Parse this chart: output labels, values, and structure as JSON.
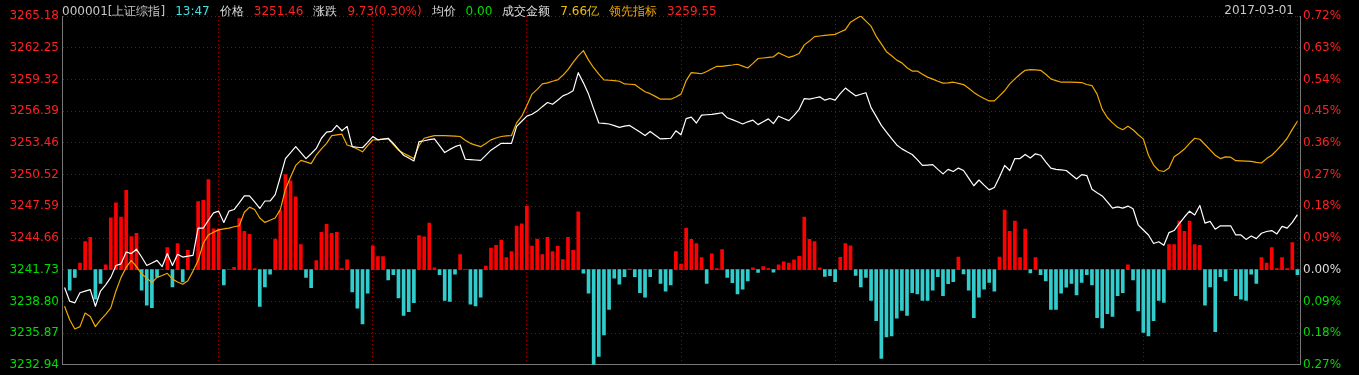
{
  "chart_data": {
    "type": "line",
    "title": "000001[上证综指]",
    "annotations": [
      "13:47",
      "3251.46",
      "涨跌",
      "9.73(0.30%)",
      "均价",
      "0.00",
      "成交金额",
      "7.66亿",
      "3259.55",
      "2017-03-01"
    ],
    "categories": [
      null,
      null,
      null,
      null,
      null,
      null,
      null,
      null,
      null,
      null,
      null,
      null,
      null,
      null,
      null,
      null,
      null,
      null,
      null,
      null,
      null,
      null,
      null,
      null,
      null,
      null,
      null,
      null,
      null,
      null,
      null,
      null,
      null,
      null,
      null,
      null,
      null,
      null,
      null,
      null,
      null,
      null,
      null,
      null,
      null,
      null,
      null,
      null,
      null,
      null,
      null,
      null,
      null,
      null,
      null,
      null,
      null,
      null,
      null,
      null,
      null,
      null,
      null,
      null,
      null,
      null,
      null,
      null,
      null,
      null,
      null,
      null,
      null,
      null,
      null,
      null,
      null,
      null,
      null,
      null,
      null,
      null,
      null,
      null,
      null,
      null,
      null,
      null,
      null,
      null,
      null,
      null,
      null,
      null,
      null,
      null,
      null,
      null,
      null,
      null,
      null,
      null,
      null,
      null,
      null,
      null,
      null,
      null,
      null,
      null,
      null,
      null,
      null,
      null,
      null,
      null,
      null,
      null,
      null,
      null,
      null,
      null,
      null,
      null,
      null,
      null,
      null,
      null,
      null,
      null,
      null,
      null,
      null,
      null,
      null,
      null,
      null,
      null,
      null,
      null,
      null,
      null,
      null,
      null,
      null,
      null,
      null,
      null,
      null,
      null,
      null,
      null,
      null,
      null,
      null,
      null,
      null,
      null,
      null,
      null,
      null,
      null,
      null,
      null,
      null,
      null,
      null,
      null,
      null,
      null,
      null,
      null,
      null,
      null,
      null,
      null,
      null,
      null,
      null,
      null,
      null,
      null,
      null,
      null,
      null,
      null,
      null,
      null,
      null,
      null,
      null,
      null,
      null,
      null,
      null,
      null,
      null,
      null,
      null,
      null,
      null,
      null,
      null,
      null,
      null,
      null,
      null,
      null,
      null,
      null,
      null,
      null,
      null,
      null,
      null,
      null,
      null,
      null,
      null,
      null,
      null,
      null,
      null,
      null,
      null,
      null,
      null,
      null,
      null,
      null,
      null,
      null,
      null,
      null,
      null,
      null,
      null,
      null,
      null,
      null,
      null
    ],
    "ylim": [
      3232.94,
      3265.18
    ],
    "yticks": [
      {
        "value": 3232.94,
        "label": "3232.94"
      },
      {
        "value": 3235.87,
        "label": "3235.87"
      },
      {
        "value": 3238.8,
        "label": "3238.80"
      },
      {
        "value": 3241.73,
        "label": "3241.73"
      },
      {
        "value": 3244.66,
        "label": "3244.66"
      },
      {
        "value": 3247.59,
        "label": "3247.59"
      },
      {
        "value": 3250.52,
        "label": "3250.52"
      },
      {
        "value": 3253.46,
        "label": "3253.46"
      },
      {
        "value": 3256.39,
        "label": "3256.39"
      },
      {
        "value": 3259.32,
        "label": "3259.32"
      },
      {
        "value": 3262.25,
        "label": "3262.25"
      },
      {
        "value": 3265.18,
        "label": "3265.18"
      }
    ],
    "y2lim": [
      -0.27,
      0.72
    ],
    "y2ticks": [
      {
        "value": -0.27,
        "label": "0.27%"
      },
      {
        "value": -0.18,
        "label": "0.18%"
      },
      {
        "value": -0.09,
        "label": "0.09%"
      },
      {
        "value": 0,
        "label": "0.00%"
      },
      {
        "value": 0.09,
        "label": "0.09%"
      },
      {
        "value": 0.18,
        "label": "0.18%"
      },
      {
        "value": 0.27,
        "label": "0.27%"
      },
      {
        "value": 0.36,
        "label": "0.36%"
      },
      {
        "value": 0.45,
        "label": "0.45%"
      },
      {
        "value": 0.54,
        "label": "0.54%"
      },
      {
        "value": 0.63,
        "label": "0.63%"
      },
      {
        "value": 0.72,
        "label": "0.72%"
      }
    ],
    "grid": true,
    "tick_labels": "y",
    "series": [
      {
        "type": "bar",
        "axis": "y2",
        "values": [
          null,
          -0.058,
          -0.022,
          0.019,
          0.08,
          0.092,
          -0.084,
          -0.039,
          0.014,
          0.147,
          0.19,
          0.149,
          0.225,
          0.094,
          0.103,
          -0.058,
          -0.101,
          -0.108,
          -0.021,
          0,
          0.063,
          -0.049,
          0.074,
          -0.035,
          0.055,
          0,
          0.193,
          0.197,
          0.256,
          0.116,
          0.116,
          -0.043,
          0,
          0.007,
          0.145,
          0.109,
          0.1,
          0.003,
          -0.104,
          -0.049,
          -0.013,
          0.087,
          0.168,
          0.27,
          0.252,
          0.207,
          0.071,
          -0.022,
          -0.051,
          0.026,
          0.106,
          0.129,
          0.103,
          0.106,
          0.003,
          0.028,
          -0.063,
          -0.109,
          -0.154,
          -0.067,
          0.068,
          0.037,
          0.037,
          -0.029,
          -0.014,
          -0.08,
          -0.13,
          -0.119,
          -0.094,
          0.097,
          0.093,
          0.132,
          0.005,
          -0.014,
          -0.087,
          -0.09,
          -0.013,
          0.043,
          0,
          -0.098,
          -0.103,
          -0.078,
          0.01,
          0.061,
          0.069,
          0.084,
          0.034,
          0.051,
          0.124,
          0.13,
          0.18,
          0.067,
          0.087,
          0.043,
          0.092,
          0.051,
          0.067,
          0.029,
          0.092,
          0.055,
          0.164,
          -0.01,
          -0.067,
          -0.27,
          -0.246,
          -0.185,
          -0.113,
          -0.024,
          -0.041,
          -0.02,
          0.002,
          -0.02,
          -0.065,
          -0.078,
          -0.02,
          0,
          -0.039,
          -0.061,
          -0.043,
          0.051,
          0.016,
          0.118,
          0.086,
          0.074,
          0.034,
          -0.039,
          0.045,
          0.003,
          0.057,
          -0.022,
          -0.037,
          -0.069,
          -0.055,
          -0.032,
          0.005,
          -0.008,
          0.009,
          0.003,
          -0.007,
          0.014,
          0.022,
          0.019,
          0.028,
          0.038,
          0.149,
          0.086,
          0.08,
          0.005,
          -0.019,
          -0.017,
          -0.034,
          0.035,
          0.074,
          0.068,
          -0.016,
          -0.049,
          -0.022,
          -0.087,
          -0.145,
          -0.252,
          -0.191,
          -0.188,
          -0.138,
          -0.116,
          -0.13,
          -0.065,
          -0.069,
          -0.087,
          -0.087,
          -0.058,
          -0.02,
          -0.074,
          -0.04,
          -0.034,
          0.036,
          -0.012,
          -0.058,
          -0.136,
          -0.078,
          -0.055,
          -0.036,
          -0.061,
          0.036,
          0.169,
          0.109,
          0.138,
          0.034,
          0.115,
          -0.009,
          0.034,
          -0.014,
          -0.032,
          -0.113,
          -0.113,
          -0.067,
          -0.05,
          -0.039,
          -0.072,
          -0.036,
          -0.014,
          -0.043,
          -0.136,
          -0.165,
          -0.125,
          -0.133,
          -0.074,
          -0.065,
          0.014,
          -0.029,
          -0.117,
          -0.178,
          -0.188,
          -0.145,
          -0.087,
          -0.093,
          0.071,
          0.071,
          0.138,
          0.109,
          0.138,
          0.071,
          0.069,
          -0.101,
          -0.049,
          -0.176,
          -0.02,
          -0.032,
          0,
          -0.074,
          -0.084,
          -0.087,
          -0.013,
          -0.039,
          0.034,
          0.019,
          0.063,
          0.003,
          0.034,
          0.003,
          0.077,
          -0.014
        ],
        "colors": [
          "#ff0000",
          "#33cccc",
          "#33cccc",
          "#ff0000",
          "#ff0000",
          "#ff0000",
          "#33cccc",
          "#33cccc",
          "#ff0000",
          "#ff0000",
          "#ff0000",
          "#ff0000",
          "#ff0000",
          "#ff0000",
          "#ff0000",
          "#33cccc",
          "#33cccc",
          "#33cccc",
          "#33cccc",
          "#ff0000",
          "#ff0000",
          "#33cccc",
          "#ff0000",
          "#33cccc",
          "#ff0000",
          "#ff0000",
          "#ff0000",
          "#ff0000",
          "#ff0000",
          "#ff0000",
          "#ff0000",
          "#33cccc",
          "#ff0000",
          "#ff0000",
          "#ff0000",
          "#ff0000",
          "#ff0000",
          "#ff0000",
          "#33cccc",
          "#33cccc",
          "#33cccc",
          "#ff0000",
          "#ff0000",
          "#ff0000",
          "#ff0000",
          "#ff0000",
          "#ff0000",
          "#33cccc",
          "#33cccc",
          "#ff0000",
          "#ff0000",
          "#ff0000",
          "#ff0000",
          "#ff0000",
          "#ff0000",
          "#ff0000",
          "#33cccc",
          "#33cccc",
          "#33cccc",
          "#33cccc",
          "#ff0000",
          "#ff0000",
          "#ff0000",
          "#33cccc",
          "#33cccc",
          "#33cccc",
          "#33cccc",
          "#33cccc",
          "#33cccc",
          "#ff0000",
          "#ff0000",
          "#ff0000",
          "#ff0000",
          "#33cccc",
          "#33cccc",
          "#33cccc",
          "#33cccc",
          "#ff0000",
          "#ff0000",
          "#33cccc",
          "#33cccc",
          "#33cccc",
          "#ff0000",
          "#ff0000",
          "#ff0000",
          "#ff0000",
          "#ff0000",
          "#ff0000",
          "#ff0000",
          "#ff0000",
          "#ff0000",
          "#ff0000",
          "#ff0000",
          "#ff0000",
          "#ff0000",
          "#ff0000",
          "#ff0000",
          "#ff0000",
          "#ff0000",
          "#ff0000",
          "#ff0000",
          "#33cccc",
          "#33cccc",
          "#33cccc",
          "#33cccc",
          "#33cccc",
          "#33cccc",
          "#33cccc",
          "#33cccc",
          "#33cccc",
          "#ff0000",
          "#33cccc",
          "#33cccc",
          "#33cccc",
          "#33cccc",
          "#ff0000",
          "#33cccc",
          "#33cccc",
          "#33cccc",
          "#ff0000",
          "#ff0000",
          "#ff0000",
          "#ff0000",
          "#ff0000",
          "#ff0000",
          "#33cccc",
          "#ff0000",
          "#ff0000",
          "#ff0000",
          "#33cccc",
          "#33cccc",
          "#33cccc",
          "#33cccc",
          "#33cccc",
          "#ff0000",
          "#33cccc",
          "#ff0000",
          "#ff0000",
          "#33cccc",
          "#ff0000",
          "#ff0000",
          "#ff0000",
          "#ff0000",
          "#ff0000",
          "#ff0000",
          "#ff0000",
          "#ff0000",
          "#ff0000",
          "#33cccc",
          "#33cccc",
          "#33cccc",
          "#ff0000",
          "#ff0000",
          "#ff0000",
          "#33cccc",
          "#33cccc",
          "#33cccc",
          "#33cccc",
          "#33cccc",
          "#33cccc",
          "#33cccc",
          "#33cccc",
          "#33cccc",
          "#33cccc",
          "#33cccc",
          "#33cccc",
          "#33cccc",
          "#33cccc",
          "#33cccc",
          "#33cccc",
          "#33cccc",
          "#33cccc",
          "#33cccc",
          "#33cccc",
          "#ff0000",
          "#33cccc",
          "#33cccc",
          "#33cccc",
          "#33cccc",
          "#33cccc",
          "#33cccc",
          "#33cccc",
          "#ff0000",
          "#ff0000",
          "#ff0000",
          "#ff0000",
          "#ff0000",
          "#ff0000",
          "#33cccc",
          "#ff0000",
          "#33cccc",
          "#33cccc",
          "#33cccc",
          "#33cccc",
          "#33cccc",
          "#33cccc",
          "#33cccc",
          "#33cccc",
          "#33cccc",
          "#33cccc",
          "#33cccc",
          "#33cccc",
          "#33cccc",
          "#33cccc",
          "#33cccc",
          "#33cccc",
          "#33cccc",
          "#ff0000",
          "#33cccc",
          "#33cccc",
          "#33cccc",
          "#33cccc",
          "#33cccc",
          "#33cccc",
          "#33cccc",
          "#ff0000",
          "#ff0000",
          "#ff0000",
          "#ff0000",
          "#ff0000",
          "#ff0000",
          "#ff0000",
          "#33cccc",
          "#33cccc",
          "#33cccc",
          "#33cccc",
          "#33cccc",
          "#ff0000",
          "#33cccc",
          "#33cccc",
          "#33cccc",
          "#33cccc",
          "#33cccc",
          "#ff0000",
          "#ff0000",
          "#ff0000",
          "#ff0000",
          "#ff0000",
          "#ff0000",
          "#ff0000",
          "#33cccc"
        ]
      },
      {
        "name": "价格",
        "color": "#ffffff",
        "values": [
          3240.08,
          3238.82,
          3238.67,
          3239.6,
          3239.75,
          3239.89,
          3238.35,
          3239.76,
          3240.33,
          3241.02,
          3242.12,
          3242.27,
          3243.37,
          3243.22,
          3243.62,
          3242.9,
          3242.12,
          3242.35,
          3242.59,
          3242.02,
          3243.22,
          3242.12,
          3243.15,
          3242.9,
          3242.98,
          3243.06,
          3245.57,
          3245.57,
          3246.3,
          3246.98,
          3247.14,
          3246.1,
          3247.14,
          3247.29,
          3247.9,
          3248.55,
          3248.55,
          3248,
          3247.39,
          3248.08,
          3248.08,
          3248.67,
          3250.3,
          3252,
          3252.55,
          3253.1,
          3252.55,
          3252,
          3252.45,
          3252.94,
          3253.88,
          3254.45,
          3254.51,
          3255.07,
          3254.57,
          3254.98,
          3253.1,
          3253.05,
          3253,
          3253.5,
          3254.04,
          3253.73,
          3253.8,
          3253.88,
          3253.4,
          3252.85,
          3252.31,
          3252.05,
          3251.78,
          3253.57,
          3253.65,
          3253.75,
          3253.82,
          3253.2,
          3252.56,
          3252.85,
          3253.1,
          3253.26,
          3251.94,
          3251.9,
          3251.87,
          3251.84,
          3252.3,
          3252.78,
          3253.1,
          3253.41,
          3253.41,
          3253.41,
          3254.98,
          3255.45,
          3255.92,
          3256.1,
          3256.39,
          3256.8,
          3257.18,
          3257.02,
          3257.4,
          3257.8,
          3258,
          3258.28,
          3259.94,
          3259,
          3257.96,
          3256.6,
          3255.29,
          3255.25,
          3255.2,
          3255.05,
          3254.89,
          3255,
          3255.07,
          3254.75,
          3254.45,
          3254.13,
          3254.51,
          3254.15,
          3253.82,
          3253.85,
          3253.88,
          3254.57,
          3254.2,
          3255.7,
          3255.83,
          3255.29,
          3256.02,
          3256.05,
          3256.08,
          3256.16,
          3256.24,
          3255.77,
          3255.6,
          3255.4,
          3255.2,
          3255.4,
          3255.55,
          3255.14,
          3255.4,
          3255.67,
          3255.23,
          3255.92,
          3255.7,
          3255.51,
          3256,
          3256.55,
          3257.55,
          3257.49,
          3257.6,
          3257.71,
          3257.4,
          3257.55,
          3257.4,
          3258,
          3258.52,
          3258.15,
          3257.8,
          3257.95,
          3258.09,
          3256.71,
          3255.9,
          3255.07,
          3254.45,
          3253.85,
          3253.26,
          3252.9,
          3252.63,
          3252.38,
          3251.9,
          3251.37,
          3251.4,
          3251.44,
          3251,
          3250.59,
          3251,
          3250.81,
          3251.12,
          3250.9,
          3250.2,
          3249.49,
          3250.02,
          3249.55,
          3249.11,
          3249.33,
          3250.3,
          3251.37,
          3250.9,
          3252,
          3252,
          3252.38,
          3252.06,
          3252.44,
          3252.31,
          3251.7,
          3251.12,
          3251,
          3250.95,
          3250.9,
          3250.5,
          3250.12,
          3250.52,
          3250.43,
          3249.17,
          3248.85,
          3248.55,
          3248,
          3247.42,
          3247.54,
          3247.42,
          3247.61,
          3247.36,
          3245.88,
          3245.4,
          3244.94,
          3244.15,
          3244.31,
          3243.99,
          3245.16,
          3245.35,
          3246,
          3246.6,
          3247.14,
          3246.79,
          3247.67,
          3246.04,
          3246.2,
          3245.47,
          3245.79,
          3245.79,
          3245.79,
          3244.94,
          3244.94,
          3244.53,
          3244.85,
          3244.6,
          3245.1,
          3245.26,
          3245.35,
          3245.04,
          3245.73,
          3245.57,
          3246.1,
          3246.82
        ]
      },
      {
        "name": "领先指标",
        "color": "#f0a800",
        "values": [
          3238.35,
          3237.1,
          3236.25,
          3236.47,
          3237.72,
          3237.41,
          3236.47,
          3237.1,
          3237.6,
          3238.2,
          3239.76,
          3241.02,
          3241.96,
          3242.59,
          3242.02,
          3241.33,
          3240.95,
          3240.55,
          3241.02,
          3241.2,
          3241.4,
          3240.86,
          3240.6,
          3240.39,
          3240.71,
          3241.6,
          3242.59,
          3244.16,
          3244.94,
          3245.2,
          3245.41,
          3245.5,
          3245.57,
          3245.7,
          3245.79,
          3247.04,
          3247.51,
          3247.29,
          3246.51,
          3246.1,
          3246.3,
          3246.51,
          3247.29,
          3249.17,
          3250.3,
          3251.37,
          3251.84,
          3251.7,
          3251.53,
          3252.31,
          3252.9,
          3253.41,
          3254.13,
          3254.2,
          3254.26,
          3253.26,
          3253.1,
          3252.88,
          3252.63,
          3253.2,
          3253.72,
          3253.75,
          3253.8,
          3253.82,
          3253.3,
          3252.78,
          3252.5,
          3252.25,
          3252,
          3253.2,
          3253.88,
          3254,
          3254.13,
          3254.13,
          3254.13,
          3254.1,
          3254.07,
          3254.04,
          3253.7,
          3253.41,
          3253.25,
          3253.1,
          3253.4,
          3253.73,
          3253.9,
          3254.04,
          3254.1,
          3254.13,
          3255.3,
          3255.92,
          3256.9,
          3257.96,
          3258.4,
          3258.9,
          3259,
          3259.15,
          3259.28,
          3259.7,
          3260.22,
          3260.9,
          3261.5,
          3261.98,
          3261.1,
          3260.4,
          3259.8,
          3259.28,
          3259.24,
          3259.2,
          3259.15,
          3258.9,
          3258.87,
          3258.84,
          3258.5,
          3258.18,
          3258,
          3257.75,
          3257.49,
          3257.49,
          3257.49,
          3257.7,
          3257.96,
          3259.2,
          3259.94,
          3259.9,
          3259.84,
          3260.05,
          3260.3,
          3260.53,
          3260.53,
          3260.6,
          3260.65,
          3260.72,
          3260.55,
          3260.37,
          3260.8,
          3261.25,
          3261.3,
          3261.35,
          3261.41,
          3261.79,
          3261.55,
          3261.35,
          3261.5,
          3261.72,
          3262.51,
          3262.86,
          3263.27,
          3263.33,
          3263.39,
          3263.43,
          3263.48,
          3263.7,
          3263.92,
          3264.61,
          3264.9,
          3265.18,
          3264.7,
          3264.24,
          3263.3,
          3262.6,
          3261.88,
          3261.5,
          3261.1,
          3260.85,
          3260.4,
          3260.09,
          3260.09,
          3259.8,
          3259.53,
          3259.35,
          3259.15,
          3258.97,
          3259,
          3259.06,
          3258.95,
          3258.84,
          3258.5,
          3258.12,
          3257.8,
          3257.55,
          3257.33,
          3257.33,
          3257.8,
          3258.27,
          3258.9,
          3259.37,
          3259.8,
          3260.16,
          3260.22,
          3260.2,
          3260.16,
          3259.8,
          3259.37,
          3259.2,
          3259.06,
          3259.06,
          3259.06,
          3259.04,
          3259.03,
          3258.85,
          3258.75,
          3257.96,
          3256.55,
          3255.8,
          3255.3,
          3254.9,
          3254.67,
          3254.98,
          3254.67,
          3254.2,
          3253.82,
          3252.31,
          3251.4,
          3250.9,
          3250.81,
          3251.12,
          3252.16,
          3252.5,
          3252.88,
          3253.4,
          3253.88,
          3253.79,
          3253.3,
          3252.8,
          3252.31,
          3252,
          3252.16,
          3252.13,
          3251.81,
          3251.78,
          3251.76,
          3251.75,
          3251.65,
          3251.59,
          3252,
          3252.31,
          3252.78,
          3253.3,
          3253.88,
          3254.7,
          3255.45
        ]
      }
    ]
  }
}
